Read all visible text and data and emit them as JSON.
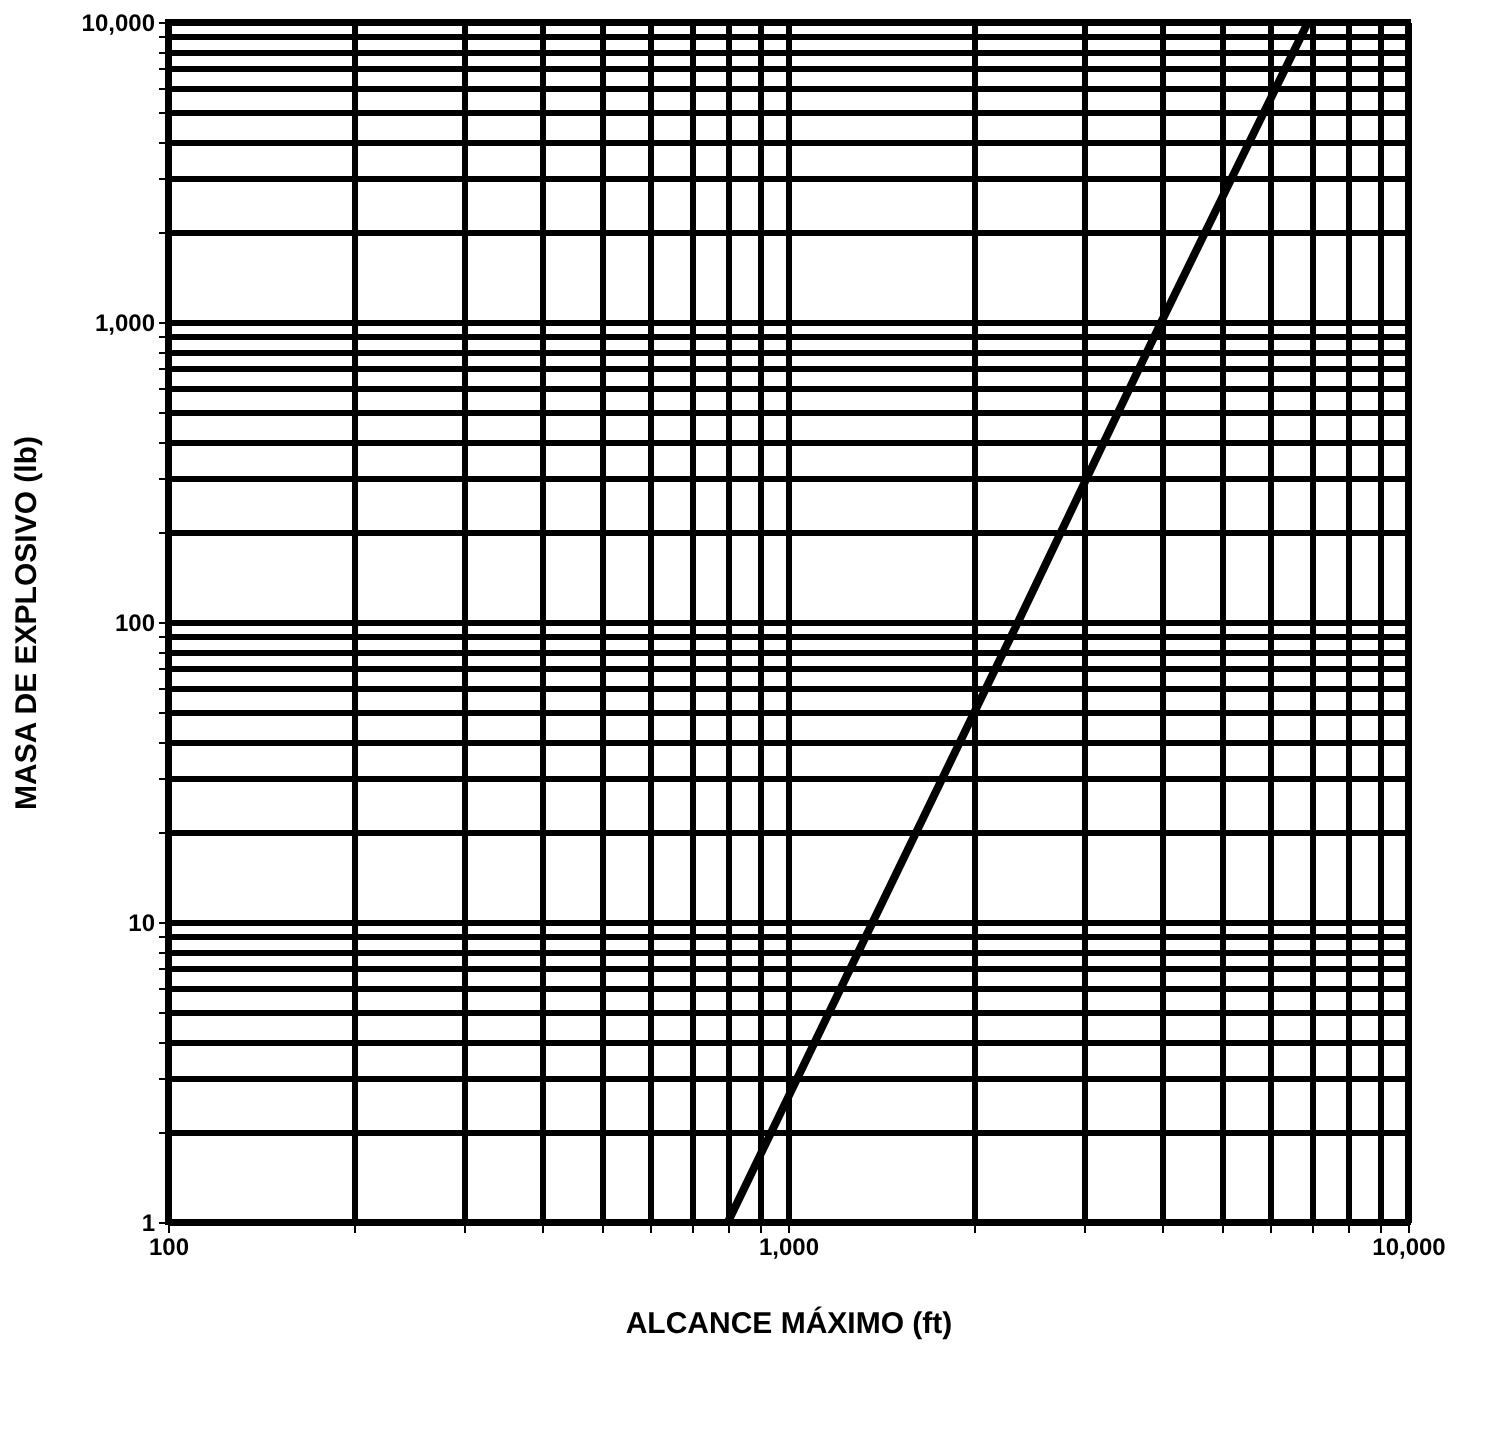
{
  "chart_data": {
    "type": "line",
    "xlabel": "ALCANCE MÁXIMO (ft)",
    "ylabel": "MASA DE EXPLOSIVO (lb)",
    "log": "xy",
    "grid": true,
    "marker": "none",
    "line_style": "solid",
    "x": [
      800,
      1370,
      2350,
      4000,
      6900
    ],
    "series": [
      {
        "color": "#000000",
        "values": [
          1,
          10,
          100,
          1000,
          10000
        ]
      }
    ],
    "xlim": [
      100,
      10000
    ],
    "ylim": [
      1,
      10000
    ],
    "xticks": [
      100,
      {
        "value": 200,
        "label": null
      },
      {
        "value": 300,
        "label": null
      },
      {
        "value": 400,
        "label": null
      },
      {
        "value": 500,
        "label": null
      },
      {
        "value": 600,
        "label": null
      },
      {
        "value": 700,
        "label": null
      },
      {
        "value": 800,
        "label": null
      },
      {
        "value": 900,
        "label": null
      },
      {
        "value": 1000,
        "label": "1,000"
      },
      {
        "value": 2000,
        "label": null
      },
      {
        "value": 3000,
        "label": null
      },
      {
        "value": 4000,
        "label": null
      },
      {
        "value": 5000,
        "label": null
      },
      {
        "value": 6000,
        "label": null
      },
      {
        "value": 7000,
        "label": null
      },
      {
        "value": 8000,
        "label": null
      },
      {
        "value": 9000,
        "label": null
      },
      {
        "value": 10000,
        "label": "10,000"
      }
    ],
    "yticks": [
      1,
      {
        "value": 2,
        "label": null
      },
      {
        "value": 3,
        "label": null
      },
      {
        "value": 4,
        "label": null
      },
      {
        "value": 5,
        "label": null
      },
      {
        "value": 6,
        "label": null
      },
      {
        "value": 7,
        "label": null
      },
      {
        "value": 8,
        "label": null
      },
      {
        "value": 9,
        "label": null
      },
      10,
      {
        "value": 20,
        "label": null
      },
      {
        "value": 30,
        "label": null
      },
      {
        "value": 40,
        "label": null
      },
      {
        "value": 50,
        "label": null
      },
      {
        "value": 60,
        "label": null
      },
      {
        "value": 70,
        "label": null
      },
      {
        "value": 80,
        "label": null
      },
      {
        "value": 90,
        "label": null
      },
      100,
      {
        "value": 200,
        "label": null
      },
      {
        "value": 300,
        "label": null
      },
      {
        "value": 400,
        "label": null
      },
      {
        "value": 500,
        "label": null
      },
      {
        "value": 600,
        "label": null
      },
      {
        "value": 700,
        "label": null
      },
      {
        "value": 800,
        "label": null
      },
      {
        "value": 900,
        "label": null
      },
      {
        "value": 1000,
        "label": "1,000"
      },
      {
        "value": 2000,
        "label": null
      },
      {
        "value": 3000,
        "label": null
      },
      {
        "value": 4000,
        "label": null
      },
      {
        "value": 5000,
        "label": null
      },
      {
        "value": 6000,
        "label": null
      },
      {
        "value": 7000,
        "label": null
      },
      {
        "value": 8000,
        "label": null
      },
      {
        "value": 9000,
        "label": null
      },
      {
        "value": 10000,
        "label": "10,000"
      }
    ]
  }
}
